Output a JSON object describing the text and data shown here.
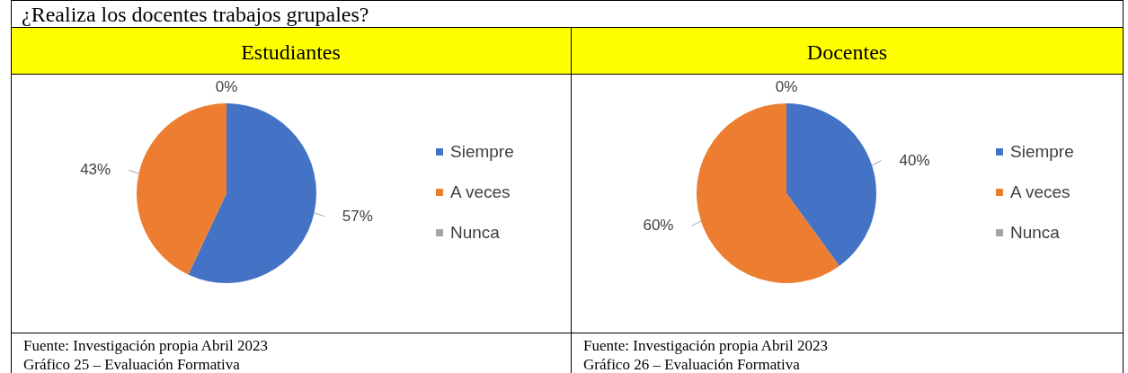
{
  "chart_data": [
    {
      "type": "pie",
      "title": "¿Realiza los docentes trabajos grupales?",
      "subtitle": "Estudiantes",
      "categories": [
        "Siempre",
        "A veces",
        "Nunca"
      ],
      "values": [
        57,
        43,
        0
      ],
      "value_labels": [
        "57%",
        "43%",
        "0%"
      ],
      "colors": [
        "#4472c4",
        "#ed7d31",
        "#a5a5a5"
      ],
      "legend": "right",
      "annotations": [
        "Fuente: Investigación propia Abril 2023",
        "Gráfico 25 – Evaluación Formativa"
      ]
    },
    {
      "type": "pie",
      "subtitle": "Docentes",
      "categories": [
        "Siempre",
        "A veces",
        "Nunca"
      ],
      "values": [
        40,
        60,
        0
      ],
      "value_labels": [
        "40%",
        "60%",
        "0%"
      ],
      "colors": [
        "#4472c4",
        "#ed7d31",
        "#a5a5a5"
      ],
      "legend": "right",
      "annotations": [
        "Fuente: Investigación propia Abril 2023",
        "Gráfico 26 – Evaluación Formativa"
      ]
    }
  ]
}
